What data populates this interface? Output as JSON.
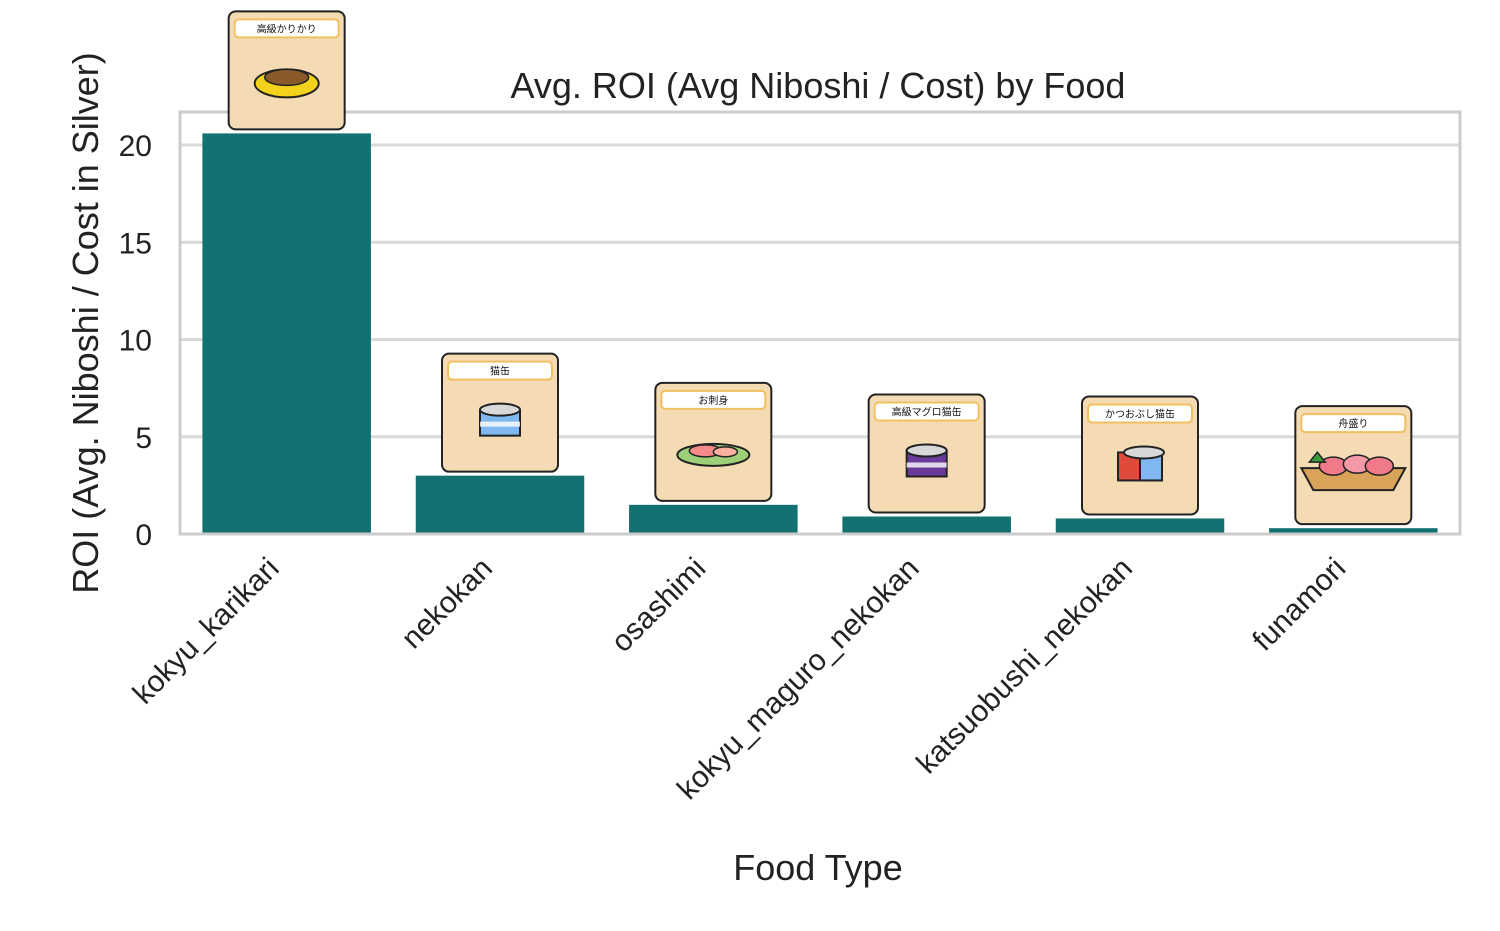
{
  "chart_data": {
    "type": "bar",
    "title": "Avg. ROI (Avg Niboshi / Cost) by Food",
    "xlabel": "Food Type",
    "ylabel": "ROI (Avg. Niboshi / Cost in Silver)",
    "categories": [
      "kokyu_karikari",
      "nekokan",
      "osashimi",
      "kokyu_maguro_nekokan",
      "katsuobushi_nekokan",
      "funamori"
    ],
    "values": [
      20.6,
      3.0,
      1.5,
      0.9,
      0.8,
      0.3
    ],
    "image_labels": [
      "高級かりかり",
      "猫缶",
      "お刺身",
      "高級マグロ猫缶",
      "かつおぶし猫缶",
      "舟盛り"
    ],
    "icons": [
      "bowl-icon",
      "can-icon",
      "sashimi-plate-icon",
      "purple-can-icon",
      "bonito-can-icon",
      "boat-platter-icon"
    ],
    "yticks": [
      0,
      5,
      10,
      15,
      20
    ],
    "ylim": [
      0,
      21.7
    ],
    "grid": true,
    "legend": "none",
    "colors": {
      "bar": "#137271",
      "grid": "#d9d9d9",
      "frame": "#cccccc",
      "card": "#f4dbb4",
      "card_border": "#222222",
      "label_border": "#f0c060"
    }
  }
}
